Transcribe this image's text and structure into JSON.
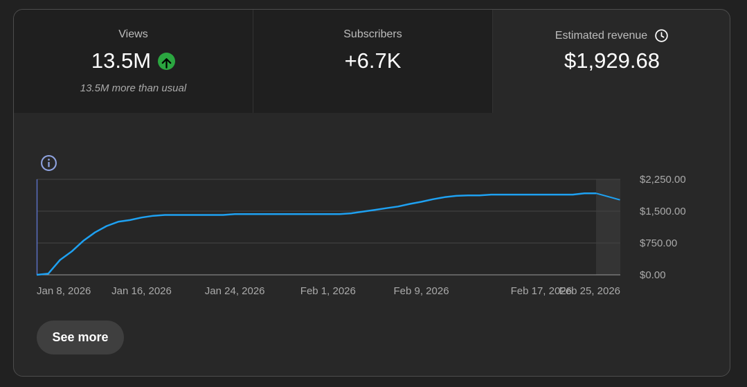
{
  "metrics": [
    {
      "label": "Views",
      "value": "13.5M",
      "note": "13.5M more than usual",
      "trend_icon": "arrow-up-icon",
      "trend_color": "#2ba640"
    },
    {
      "label": "Subscribers",
      "value": "+6.7K"
    },
    {
      "label": "Estimated revenue",
      "value": "$1,929.68",
      "icon": "clock-icon"
    }
  ],
  "info_icon": "info-icon",
  "chart_data": {
    "type": "line",
    "x": [
      "Jan 7",
      "Jan 8",
      "Jan 9",
      "Jan 10",
      "Jan 11",
      "Jan 12",
      "Jan 13",
      "Jan 14",
      "Jan 15",
      "Jan 16",
      "Jan 17",
      "Jan 18",
      "Jan 19",
      "Jan 20",
      "Jan 21",
      "Jan 22",
      "Jan 23",
      "Jan 24",
      "Jan 25",
      "Jan 26",
      "Jan 27",
      "Jan 28",
      "Jan 29",
      "Jan 30",
      "Jan 31",
      "Feb 1",
      "Feb 2",
      "Feb 3",
      "Feb 4",
      "Feb 5",
      "Feb 6",
      "Feb 7",
      "Feb 8",
      "Feb 9",
      "Feb 10",
      "Feb 11",
      "Feb 12",
      "Feb 13",
      "Feb 14",
      "Feb 15",
      "Feb 16",
      "Feb 17",
      "Feb 18",
      "Feb 19",
      "Feb 20",
      "Feb 21",
      "Feb 22",
      "Feb 23",
      "Feb 24"
    ],
    "series": [
      {
        "values": [
          0,
          30,
          350,
          550,
          800,
          1000,
          1150,
          1250,
          1290,
          1350,
          1390,
          1410,
          1410,
          1410,
          1410,
          1410,
          1410,
          1430,
          1430,
          1430,
          1430,
          1430,
          1430,
          1430,
          1430,
          1430,
          1430,
          1450,
          1490,
          1530,
          1570,
          1610,
          1670,
          1720,
          1780,
          1830,
          1860,
          1870,
          1870,
          1890,
          1890,
          1890,
          1890,
          1890,
          1890,
          1890,
          1890,
          1920,
          1920
        ]
      }
    ],
    "series_color": "#1ea1f2",
    "x_tick_labels": [
      "Jan 8, 2026",
      "Jan 16, 2026",
      "Jan 24, 2026",
      "Feb 1, 2026",
      "Feb 9, 2026",
      "Feb 17, 2026",
      "Feb 25, 2026"
    ],
    "y_tick_labels": [
      "$2,250.00",
      "$1,500.00",
      "$750.00",
      "$0.00"
    ],
    "y_ticks": [
      2250,
      1500,
      750,
      0
    ],
    "ylim": [
      0,
      2250
    ],
    "grid": true,
    "highlight_last_day": true
  },
  "see_more_label": "See more"
}
